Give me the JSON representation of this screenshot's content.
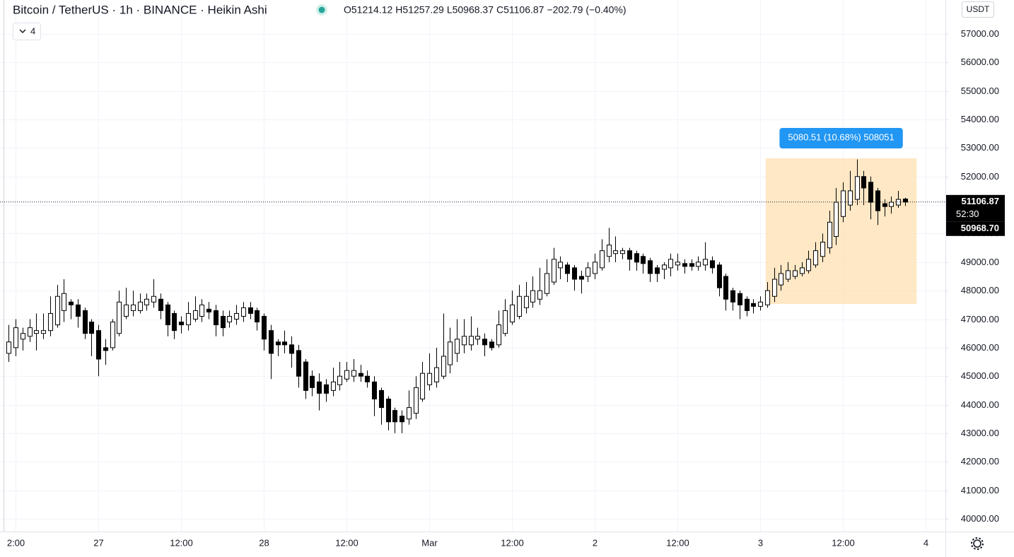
{
  "header": {
    "title": "Bitcoin / TetherUS · 1h · BINANCE · Heikin Ashi",
    "legend": [
      "O51214.12",
      "H51257.29",
      "L50968.37",
      "C51106.87",
      "−202.79 (−0.40%)"
    ],
    "indicators_count": "4"
  },
  "chart_data": {
    "type": "candlestick",
    "open": [
      45800,
      46000,
      46300,
      46400,
      46500,
      46500,
      46600,
      46800,
      47300,
      47600,
      47500,
      47300,
      46900,
      46600,
      46000,
      46000,
      46500,
      47100,
      47300,
      47300,
      47500,
      47600,
      47700,
      47500,
      47200,
      46900,
      46800,
      47000,
      47100,
      47350,
      47300,
      47100,
      46900,
      47000,
      47100,
      47400,
      47300,
      47100,
      46600,
      46200,
      46200,
      46100,
      45900,
      45500,
      45000,
      44800,
      44700,
      44500,
      44700,
      44900,
      45000,
      45100,
      45000,
      44800,
      44500,
      44200,
      43800,
      43600,
      43500,
      43700,
      44200,
      44700,
      44800,
      45000,
      45400,
      45800,
      46100,
      46100,
      46300,
      46300,
      46200,
      46100,
      46500,
      46900,
      47100,
      47400,
      47600,
      47700,
      47900,
      48300,
      48800,
      48900,
      48800,
      48500,
      48500,
      48600,
      48800,
      49200,
      49300,
      49300,
      49400,
      49300,
      49200,
      49050,
      48800,
      48750,
      48800,
      48900,
      48950,
      48950,
      48850,
      48900,
      49050,
      48900,
      48500,
      48000,
      47900,
      47700,
      47550,
      47450,
      47500,
      47800,
      48200,
      48400,
      48500,
      48600,
      48700,
      48900,
      49200,
      49500,
      49900,
      50600,
      51000,
      51200,
      52000,
      51800,
      51500,
      51050,
      50950,
      51000,
      51214.12
    ],
    "high": [
      46800,
      47000,
      46700,
      47000,
      47200,
      47200,
      47800,
      48200,
      48400,
      47700,
      47700,
      47400,
      47000,
      46800,
      46300,
      47000,
      48000,
      48100,
      48000,
      47900,
      47900,
      48400,
      47900,
      47600,
      47300,
      47100,
      47600,
      47800,
      47700,
      47600,
      47500,
      47300,
      47300,
      47500,
      47600,
      47600,
      47400,
      47200,
      46800,
      46300,
      46600,
      46400,
      46100,
      45600,
      45200,
      45100,
      44900,
      45300,
      45500,
      45500,
      45600,
      45400,
      45200,
      45000,
      44600,
      44300,
      43900,
      43800,
      44500,
      45000,
      45500,
      45800,
      46000,
      47200,
      46700,
      47000,
      47000,
      47100,
      46700,
      46500,
      46300,
      47300,
      47700,
      48000,
      48200,
      48300,
      48500,
      48800,
      49100,
      49500,
      49200,
      49000,
      48900,
      48700,
      49000,
      49300,
      49800,
      50200,
      49900,
      49500,
      49500,
      49400,
      49300,
      49150,
      48900,
      49000,
      49300,
      49300,
      49100,
      49100,
      49200,
      49700,
      49200,
      49000,
      48600,
      48100,
      48000,
      47800,
      47700,
      47800,
      48300,
      48800,
      48900,
      49000,
      48900,
      49000,
      49400,
      49700,
      50000,
      50800,
      51600,
      51800,
      52200,
      52600,
      52200,
      52000,
      51600,
      51200,
      51300,
      51500,
      51257.29
    ],
    "low": [
      45500,
      45700,
      45900,
      46200,
      45900,
      46300,
      46400,
      46700,
      46900,
      47000,
      46700,
      46300,
      45700,
      45000,
      45400,
      45900,
      46400,
      47000,
      47100,
      47200,
      47300,
      47400,
      47000,
      46400,
      46300,
      46500,
      46600,
      46900,
      46900,
      47000,
      46400,
      46400,
      46700,
      46800,
      46900,
      47000,
      46600,
      45900,
      44900,
      45700,
      45800,
      45300,
      44600,
      44200,
      44300,
      43800,
      44100,
      44300,
      44500,
      44800,
      44800,
      44800,
      44600,
      43600,
      43300,
      43100,
      43000,
      43000,
      43300,
      43500,
      44100,
      44500,
      44600,
      44900,
      45100,
      45500,
      45800,
      45900,
      46100,
      45700,
      45900,
      46000,
      46400,
      46800,
      47000,
      47200,
      47400,
      47500,
      47800,
      48200,
      48400,
      48300,
      48000,
      47900,
      48300,
      48400,
      48700,
      49000,
      49000,
      49100,
      48700,
      48700,
      48600,
      48300,
      48300,
      48400,
      48500,
      48700,
      48600,
      48700,
      48700,
      48700,
      48600,
      47800,
      47300,
      47300,
      47000,
      47100,
      47200,
      47300,
      47400,
      47600,
      48000,
      48300,
      48400,
      48500,
      48600,
      48800,
      49000,
      49300,
      49600,
      50400,
      50800,
      51000,
      51000,
      50500,
      50300,
      50600,
      50700,
      50900,
      50968.37
    ],
    "close": [
      46200,
      46700,
      46500,
      46700,
      46600,
      46600,
      47200,
      47800,
      47900,
      47500,
      47100,
      46500,
      46500,
      45600,
      45900,
      46900,
      47600,
      47500,
      47500,
      47600,
      47700,
      47800,
      47300,
      46800,
      46600,
      46800,
      47200,
      47300,
      47500,
      47250,
      46800,
      46700,
      47100,
      47200,
      47400,
      47200,
      46900,
      46300,
      45800,
      46100,
      46100,
      45800,
      45000,
      44500,
      44600,
      44400,
      44400,
      44800,
      45000,
      45200,
      45200,
      45000,
      44800,
      44200,
      43900,
      43400,
      43400,
      43400,
      43900,
      44600,
      45100,
      45100,
      45300,
      45700,
      46200,
      46300,
      46400,
      46400,
      46400,
      46100,
      46000,
      46800,
      47300,
      47500,
      47800,
      47800,
      48000,
      48000,
      48600,
      49100,
      49000,
      48600,
      48400,
      48400,
      48800,
      49000,
      49400,
      49600,
      49400,
      49400,
      49100,
      49000,
      48950,
      48600,
      48600,
      48900,
      49100,
      49000,
      48850,
      48850,
      49000,
      49100,
      48800,
      48100,
      47700,
      47600,
      47500,
      47300,
      47450,
      47600,
      48000,
      48400,
      48600,
      48700,
      48700,
      48800,
      49100,
      49400,
      49700,
      50400,
      51100,
      51500,
      51500,
      52000,
      51600,
      51100,
      50800,
      50950,
      51100,
      51200,
      51106.87
    ],
    "up_color": "#ffffff",
    "down_color": "#000000",
    "outline_color": "#000000",
    "xlim": [
      -1.26,
      135.87
    ],
    "xticks": [
      {
        "value": 1,
        "label": "2:00"
      },
      {
        "value": 13,
        "label": "27"
      },
      {
        "value": 25,
        "label": "12:00"
      },
      {
        "value": 37,
        "label": "28"
      },
      {
        "value": 49,
        "label": "12:00"
      },
      {
        "value": 61,
        "label": "Mar"
      },
      {
        "value": 73,
        "label": "12:00"
      },
      {
        "value": 85,
        "label": "2"
      },
      {
        "value": 97,
        "label": "12:00"
      },
      {
        "value": 109,
        "label": "3"
      },
      {
        "value": 121,
        "label": "12:00"
      },
      {
        "value": 133,
        "label": "4"
      }
    ],
    "ylim": [
      39553,
      58190
    ],
    "yticks": [
      {
        "value": 40000,
        "label": "40000.00"
      },
      {
        "value": 41000,
        "label": "41000.00"
      },
      {
        "value": 42000,
        "label": "42000.00"
      },
      {
        "value": 43000,
        "label": "43000.00"
      },
      {
        "value": 44000,
        "label": "44000.00"
      },
      {
        "value": 45000,
        "label": "45000.00"
      },
      {
        "value": 46000,
        "label": "46000.00"
      },
      {
        "value": 47000,
        "label": "47000.00"
      },
      {
        "value": 48000,
        "label": "48000.00"
      },
      {
        "value": 49000,
        "label": "49000.00"
      },
      {
        "value": 50000,
        "label": "50000.00"
      },
      {
        "value": 51000,
        "label": "51000.00"
      },
      {
        "value": 52000,
        "label": "52000.00"
      },
      {
        "value": 53000,
        "label": "53000.00"
      },
      {
        "value": 54000,
        "label": "54000.00"
      },
      {
        "value": 55000,
        "label": "55000.00"
      },
      {
        "value": 56000,
        "label": "56000.00"
      },
      {
        "value": 57000,
        "label": "57000.00"
      }
    ],
    "grid": true,
    "currency": "USDT",
    "last_price": 51106.87,
    "countdown": "52:30",
    "second_price": {
      "value": 50968.7,
      "label": "50968.70"
    },
    "measure": {
      "label": "5080.51 (10.68%) 508051",
      "x": [
        109.8,
        131.7
      ],
      "y": [
        47530,
        52640
      ],
      "color": "#ffe0b2",
      "label_color": "#2196f3"
    }
  }
}
